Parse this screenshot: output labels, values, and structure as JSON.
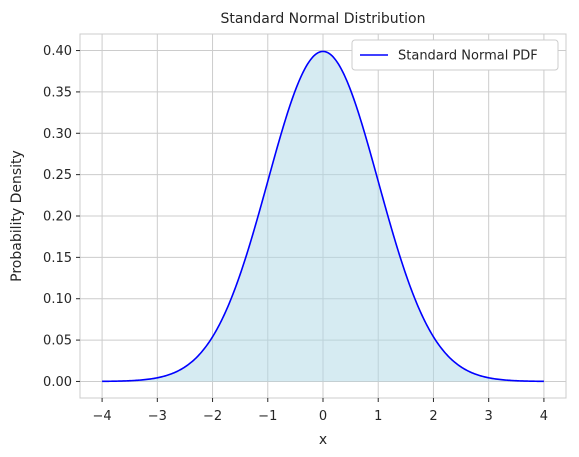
{
  "chart_data": {
    "type": "line",
    "title": "Standard Normal Distribution",
    "xlabel": "x",
    "ylabel": "Probability Density",
    "xlim": [
      -4.4,
      4.4
    ],
    "ylim": [
      -0.02,
      0.42
    ],
    "xticks": [
      -4,
      -3,
      -2,
      -1,
      0,
      1,
      2,
      3,
      4
    ],
    "xtick_labels": [
      "−4",
      "−3",
      "−2",
      "−1",
      "0",
      "1",
      "2",
      "3",
      "4"
    ],
    "yticks": [
      0.0,
      0.05,
      0.1,
      0.15,
      0.2,
      0.25,
      0.3,
      0.35,
      0.4
    ],
    "ytick_labels": [
      "0.00",
      "0.05",
      "0.10",
      "0.15",
      "0.20",
      "0.25",
      "0.30",
      "0.35",
      "0.40"
    ],
    "grid": true,
    "legend_position": "top-right",
    "series": [
      {
        "name": "Standard Normal PDF",
        "color": "#0000ff",
        "fill_color": "#add8e6",
        "x": [
          -4.0,
          -3.5,
          -3.0,
          -2.5,
          -2.0,
          -1.5,
          -1.0,
          -0.5,
          0.0,
          0.5,
          1.0,
          1.5,
          2.0,
          2.5,
          3.0,
          3.5,
          4.0
        ],
        "y": [
          0.0001,
          0.0009,
          0.0044,
          0.0175,
          0.054,
          0.1295,
          0.242,
          0.3521,
          0.3989,
          0.3521,
          0.242,
          0.1295,
          0.054,
          0.0175,
          0.0044,
          0.0009,
          0.0001
        ]
      }
    ]
  }
}
